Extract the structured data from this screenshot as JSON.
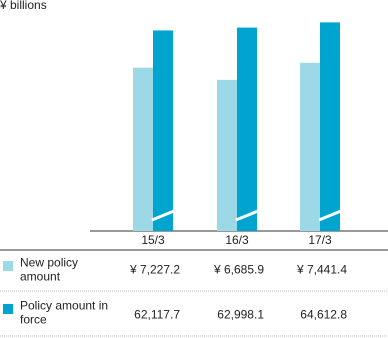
{
  "chart_data": {
    "type": "bar",
    "y_label": "¥ billions",
    "categories": [
      "15/3",
      "16/3",
      "17/3"
    ],
    "ylim": [
      0,
      10000
    ],
    "y2lim": [
      0,
      70000
    ],
    "series": [
      {
        "name": "New policy amount",
        "color": "#9dd8e6",
        "values": [
          7227.2,
          6685.9,
          7441.4
        ],
        "value_labels": [
          "¥ 7,227.2",
          "¥ 6,685.9",
          "¥ 7,441.4"
        ]
      },
      {
        "name": "Policy amount in force",
        "color": "#00a5cf",
        "axis": "y2",
        "values": [
          62117.7,
          62998.1,
          64612.8
        ],
        "value_labels": [
          "62,117.7",
          "62,998.1",
          "64,612.8"
        ]
      }
    ]
  }
}
